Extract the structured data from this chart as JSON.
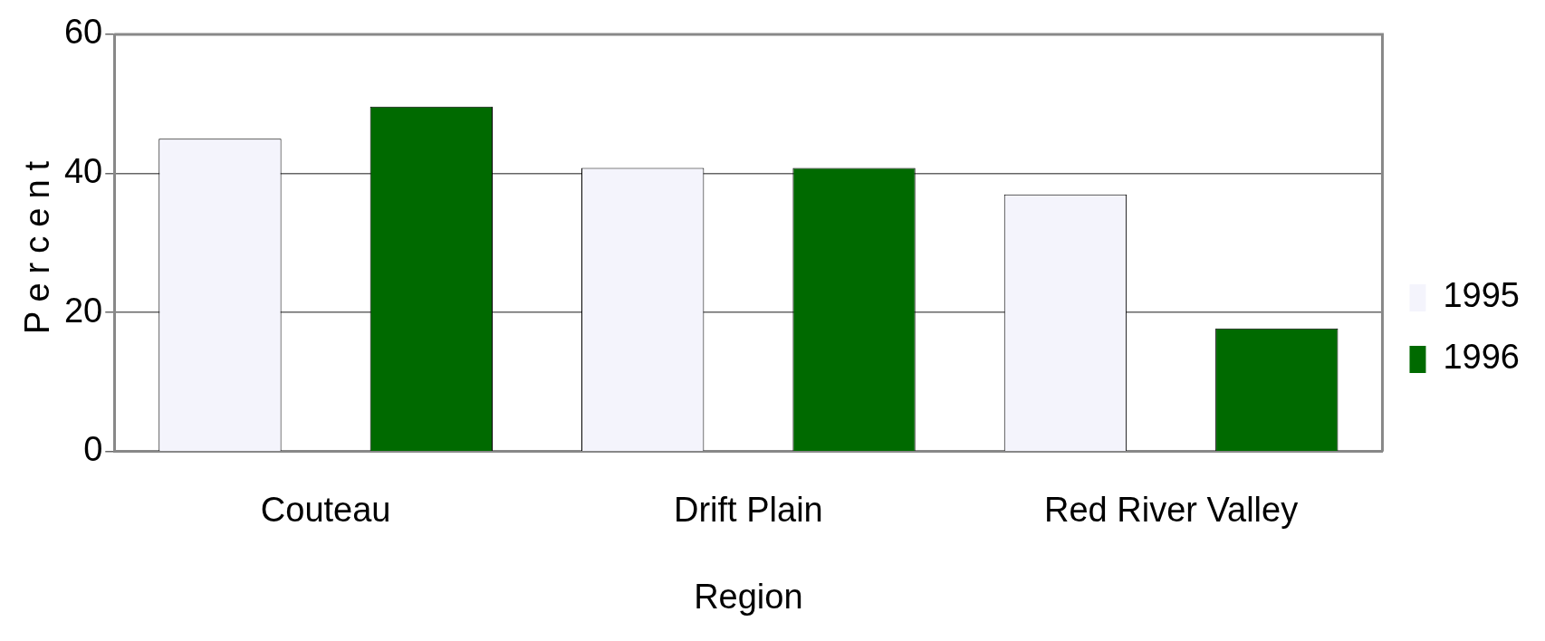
{
  "chart_data": {
    "type": "bar",
    "xlabel": "Region",
    "ylabel": "Percent",
    "categories": [
      "Couteau",
      "Drift Plain",
      "Red River Valley"
    ],
    "series": [
      {
        "name": "1995",
        "color": "#f4f4fc",
        "values": [
          45,
          40.8,
          37
        ]
      },
      {
        "name": "1996",
        "color": "#006a00",
        "values": [
          49.6,
          40.8,
          17.7
        ]
      }
    ],
    "ylim": [
      0,
      60
    ],
    "yticks": [
      0,
      20,
      40,
      60
    ],
    "grid": "y",
    "legend": "right"
  }
}
